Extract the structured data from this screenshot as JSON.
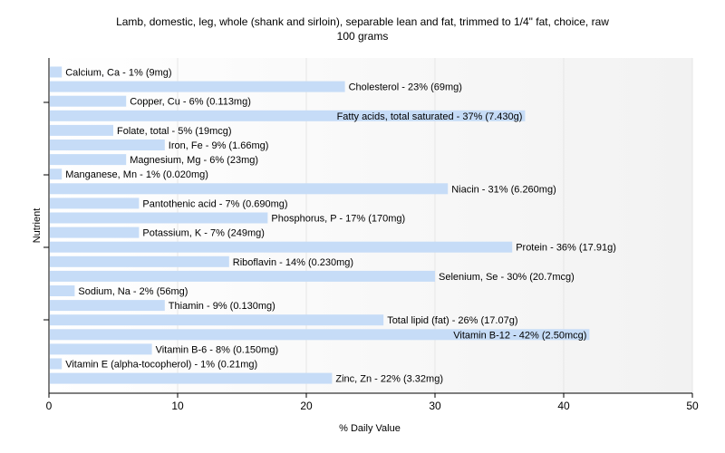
{
  "chart_data": {
    "type": "bar",
    "orientation": "horizontal",
    "title": "Lamb, domestic, leg, whole (shank and sirloin), separable lean and fat, trimmed to 1/4\" fat, choice, raw",
    "subtitle": "100 grams",
    "xlabel": "% Daily Value",
    "ylabel": "Nutrient",
    "xlim": [
      0,
      50
    ],
    "xticks": [
      "0",
      "10",
      "20",
      "30",
      "40",
      "50"
    ],
    "grid": true,
    "bar_color": "#c6dcf7",
    "categories": [
      "Calcium, Ca",
      "Cholesterol",
      "Copper, Cu",
      "Fatty acids, total saturated",
      "Folate, total",
      "Iron, Fe",
      "Magnesium, Mg",
      "Manganese, Mn",
      "Niacin",
      "Pantothenic acid",
      "Phosphorus, P",
      "Potassium, K",
      "Protein",
      "Riboflavin",
      "Selenium, Se",
      "Sodium, Na",
      "Thiamin",
      "Total lipid (fat)",
      "Vitamin B-12",
      "Vitamin B-6",
      "Vitamin E (alpha-tocopherol)",
      "Zinc, Zn"
    ],
    "values": [
      1,
      23,
      6,
      37,
      5,
      9,
      6,
      1,
      31,
      7,
      17,
      7,
      36,
      14,
      30,
      2,
      9,
      26,
      42,
      8,
      1,
      22
    ],
    "labels": [
      "Calcium, Ca - 1% (9mg)",
      "Cholesterol - 23% (69mg)",
      "Copper, Cu - 6% (0.113mg)",
      "Fatty acids, total saturated - 37% (7.430g)",
      "Folate, total - 5% (19mcg)",
      "Iron, Fe - 9% (1.66mg)",
      "Magnesium, Mg - 6% (23mg)",
      "Manganese, Mn - 1% (0.020mg)",
      "Niacin - 31% (6.260mg)",
      "Pantothenic acid - 7% (0.690mg)",
      "Phosphorus, P - 17% (170mg)",
      "Potassium, K - 7% (249mg)",
      "Protein - 36% (17.91g)",
      "Riboflavin - 14% (0.230mg)",
      "Selenium, Se - 30% (20.7mcg)",
      "Sodium, Na - 2% (56mg)",
      "Thiamin - 9% (0.130mg)",
      "Total lipid (fat) - 26% (17.07g)",
      "Vitamin B-12 - 42% (2.50mcg)",
      "Vitamin B-6 - 8% (0.150mg)",
      "Vitamin E (alpha-tocopherol) - 1% (0.21mg)",
      "Zinc, Zn - 22% (3.32mg)"
    ]
  }
}
